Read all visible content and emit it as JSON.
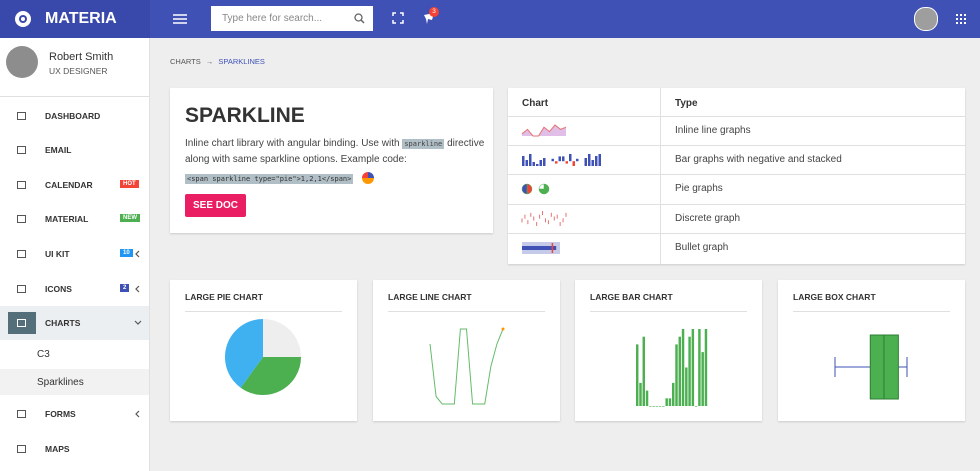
{
  "brand": "MATERIA",
  "search_placeholder": "Type here for search...",
  "notification_count": "3",
  "profile": {
    "name": "Robert Smith",
    "role": "UX DESIGNER"
  },
  "menu": [
    {
      "label": "DASHBOARD"
    },
    {
      "label": "EMAIL"
    },
    {
      "label": "CALENDAR",
      "badge": "HOT",
      "badge_color": "#f44336"
    },
    {
      "label": "MATERIAL",
      "badge": "NEW",
      "badge_color": "#4caf50"
    },
    {
      "label": "UI KIT",
      "badge": "10",
      "badge_color": "#2196f3"
    },
    {
      "label": "ICONS",
      "badge": "2",
      "badge_color": "#3f51b5"
    },
    {
      "label": "CHARTS"
    },
    {
      "label": "C3"
    },
    {
      "label": "Sparklines"
    },
    {
      "label": "FORMS"
    },
    {
      "label": "MAPS"
    }
  ],
  "breadcrumb": {
    "items": [
      "CHARTS",
      "SPARKLINES"
    ],
    "separator": "→"
  },
  "intro": {
    "title": "SPARKLINE",
    "text1": "Inline chart library with angular binding. Use with",
    "code_inline": "sparkline",
    "text2": "directive along with same sparkline options. Example code:",
    "code_example": "<span sparkline type=\"pie\">1,2,1</span>",
    "button": "SEE DOC",
    "example_pie": {
      "values": [
        1,
        2,
        1
      ],
      "colors": [
        "#3f51b5",
        "#ff9800",
        "#f44336"
      ]
    }
  },
  "table": {
    "headers": [
      "Chart",
      "Type"
    ],
    "rows": [
      {
        "type": "Inline line graphs",
        "sparks": [
          {
            "type": "line",
            "color": "#e57373",
            "fill": "#e1bee7",
            "values": [
              3,
              5,
              2,
              2,
              6,
              4,
              7,
              5,
              6
            ]
          }
        ]
      },
      {
        "type": "Bar graphs with negative and stacked",
        "sparks": [
          {
            "type": "bar",
            "color": "#3f51b5",
            "neg_color": "#f44336",
            "values": [
              5,
              3,
              6,
              2,
              1,
              3,
              4
            ]
          },
          {
            "type": "bar",
            "color": "#3f51b5",
            "neg_color": "#f44336",
            "values": [
              1,
              -1,
              2,
              2,
              -1,
              3,
              -2,
              1
            ]
          },
          {
            "type": "bar",
            "color": "#3f51b5",
            "neg_color": "#f44336",
            "values": [
              4,
              6,
              3,
              5,
              6
            ]
          }
        ]
      },
      {
        "type": "Pie graphs",
        "sparks": [
          {
            "type": "pie",
            "colors": [
              "#f44336",
              "#3f51b5"
            ],
            "values": [
              1,
              1
            ]
          },
          {
            "type": "pie",
            "colors": [
              "#4caf50",
              "#ffffff"
            ],
            "values": [
              3,
              1
            ]
          }
        ]
      },
      {
        "type": "Discrete graph",
        "sparks": [
          {
            "type": "discrete",
            "color": "#e57373",
            "values": [
              4,
              6,
              3,
              7,
              5,
              2,
              6,
              8,
              4,
              3,
              7,
              5,
              6,
              2,
              4,
              7
            ]
          }
        ]
      },
      {
        "type": "Bullet graph",
        "sparks": [
          {
            "type": "bullet",
            "range_color": "#c5cae9",
            "perf_color": "#3f51b5",
            "target_color": "#f44336",
            "range": 10,
            "performance": 9,
            "target": 8
          }
        ]
      }
    ]
  },
  "cards": [
    {
      "title": "LARGE PIE CHART",
      "type": "pie",
      "values": [
        25,
        35,
        40
      ],
      "colors": [
        "#eeeeee",
        "#4caf50",
        "#3fb1f0"
      ]
    },
    {
      "title": "LARGE LINE CHART",
      "type": "line",
      "color": "#66bb6a",
      "end_color": "#ff9800",
      "values": [
        8,
        1,
        0,
        0,
        0,
        10,
        10,
        0,
        0,
        0,
        5,
        8,
        10
      ]
    },
    {
      "title": "LARGE BAR CHART",
      "type": "bar",
      "color": "#4caf50",
      "values": [
        8,
        3,
        9,
        2,
        0,
        0,
        0,
        0,
        0,
        1,
        1,
        3,
        8,
        9,
        10,
        5,
        9,
        10,
        0,
        10,
        7,
        10
      ]
    },
    {
      "title": "LARGE BOX CHART",
      "type": "box",
      "color": "#4caf50",
      "whisker_color": "#3f51b5",
      "min": 0,
      "q1": 4.9,
      "median": 6.8,
      "q3": 8.8,
      "max": 10
    }
  ]
}
